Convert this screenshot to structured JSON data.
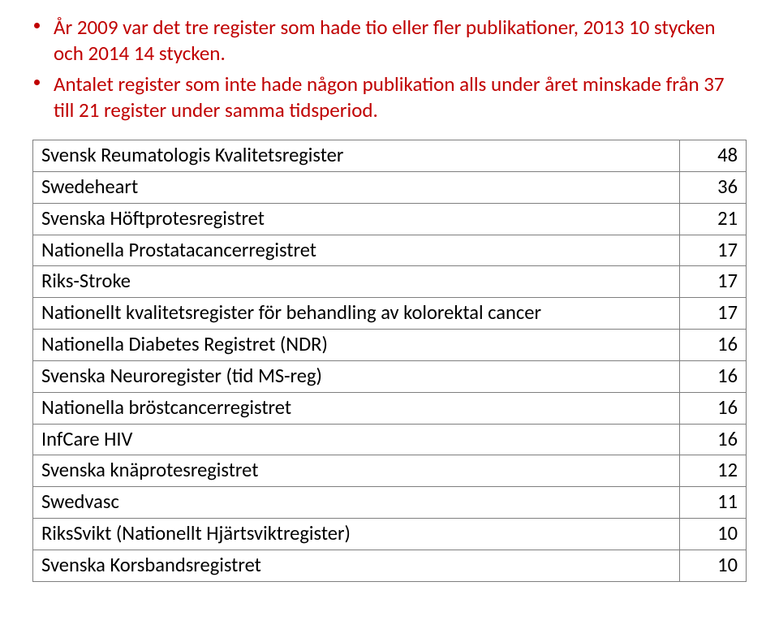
{
  "colors": {
    "bullet_text": "#c00000",
    "bullet_dot": "#c00000",
    "table_border": "#7f7f7f",
    "text": "#000000"
  },
  "bullets": [
    "År 2009 var det tre register som hade tio eller fler publikationer, 2013 10 stycken och 2014 14 stycken.",
    "Antalet register som inte hade någon publikation alls under året minskade från 37 till 21 register under samma tidsperiod."
  ],
  "table": {
    "rows": [
      {
        "label": "Svensk Reumatologis Kvalitetsregister",
        "value": "48"
      },
      {
        "label": "Swedeheart",
        "value": "36"
      },
      {
        "label": "Svenska Höftprotesregistret",
        "value": "21"
      },
      {
        "label": "Nationella Prostatacancerregistret",
        "value": "17"
      },
      {
        "label": "Riks-Stroke",
        "value": "17"
      },
      {
        "label": "Nationellt kvalitetsregister för behandling av kolorektal cancer",
        "value": "17"
      },
      {
        "label": "Nationella Diabetes Registret (NDR)",
        "value": "16"
      },
      {
        "label": "Svenska Neuroregister (tid MS-reg)",
        "value": "16"
      },
      {
        "label": "Nationella bröstcancerregistret",
        "value": "16"
      },
      {
        "label": "InfCare HIV",
        "value": "16"
      },
      {
        "label": "Svenska knäprotesregistret",
        "value": "12"
      },
      {
        "label": "Swedvasc",
        "value": "11"
      },
      {
        "label": "RiksSvikt (Nationellt Hjärtsviktregister)",
        "value": "10"
      },
      {
        "label": "Svenska Korsbandsregistret",
        "value": "10"
      }
    ]
  }
}
